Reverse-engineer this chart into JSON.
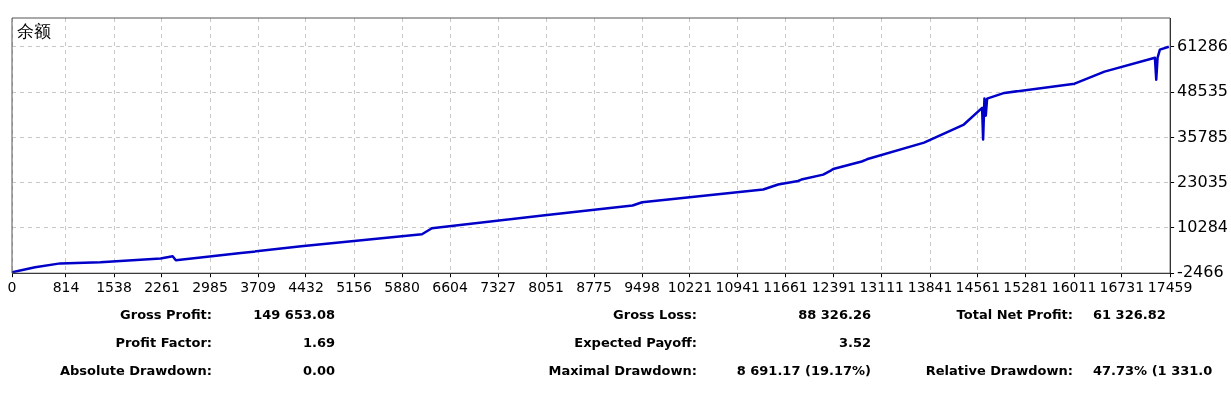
{
  "chart_data": {
    "type": "line",
    "title": "余额",
    "x": [
      0,
      348,
      727,
      1332,
      2240,
      2422,
      2470,
      3450,
      4360,
      6180,
      6330,
      8000,
      9355,
      9500,
      11325,
      11550,
      11850,
      11900,
      12230,
      12350,
      12380,
      12810,
      12880,
      12900,
      13750,
      14350,
      14625,
      14640,
      14660,
      14680,
      14700,
      14960,
      16020,
      16470,
      17230,
      17250,
      17270,
      17305,
      17440
    ],
    "series": [
      {
        "color": "#0000c8",
        "values": [
          -2200,
          -800,
          300,
          600,
          1700,
          2300,
          1200,
          3200,
          5100,
          8500,
          10200,
          13800,
          16600,
          17500,
          21100,
          22500,
          23500,
          23900,
          25300,
          26500,
          26900,
          29000,
          29500,
          29700,
          34300,
          39400,
          44100,
          35200,
          46700,
          41900,
          46700,
          48300,
          50900,
          54300,
          58200,
          52000,
          58200,
          60500,
          61286
        ]
      }
    ],
    "xlim": [
      0,
      17459
    ],
    "xticks": [
      0,
      814,
      1538,
      2261,
      2985,
      3709,
      4432,
      5156,
      5880,
      6604,
      7327,
      8051,
      8775,
      9498,
      10221,
      10941,
      11661,
      12391,
      13111,
      13841,
      14561,
      15281,
      16011,
      16731,
      17459
    ],
    "ylim": [
      -2466,
      69400
    ],
    "yticks": [
      -2466,
      10284,
      23035,
      35785,
      48535,
      61286
    ],
    "grid": true,
    "line_style": "solid",
    "marker": "none",
    "legend": false,
    "annotations": [
      "Gross Profit:",
      "149 653.08",
      "Gross Loss:",
      "88 326.26",
      "Total Net Profit:",
      "61 326.82",
      "Profit Factor:",
      "1.69",
      "Expected Payoff:",
      "3.52",
      "Absolute Drawdown:",
      "0.00",
      "Maximal Drawdown:",
      "8 691.17 (19.17%)",
      "Relative Drawdown:",
      "47.73% (1 331.0"
    ]
  }
}
